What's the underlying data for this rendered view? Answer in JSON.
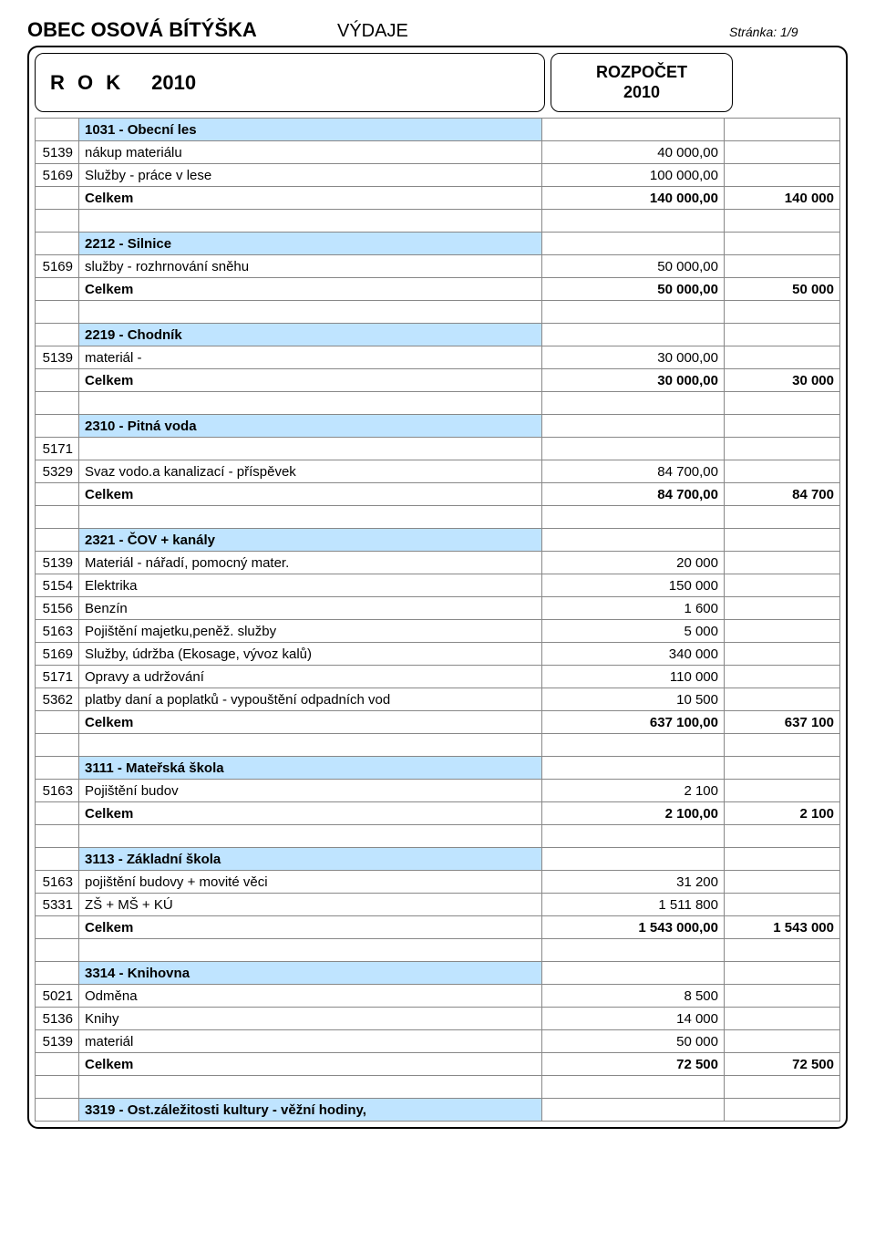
{
  "header": {
    "org": "OBEC OSOVÁ BÍTÝŠKA",
    "doc_type": "VÝDAJE",
    "page_label": "Stránka: 1/9",
    "year_label": "R O K",
    "year": "2010",
    "budget_label_1": "ROZPOČET",
    "budget_label_2": "2010"
  },
  "colors": {
    "section_bg": "#bfe4ff",
    "border": "#888888",
    "frame": "#000000"
  },
  "sections": [
    {
      "title": "1031 - Obecní les",
      "rows": [
        {
          "code": "5139",
          "label": "nákup  materiálu",
          "val": "40 000,00"
        },
        {
          "code": "5169",
          "label": "Služby - práce v lese",
          "val": "100 000,00"
        }
      ],
      "total_label": "Celkem",
      "total_val": "140 000,00",
      "total_ext": "140 000"
    },
    {
      "title": "2212 - Silnice",
      "rows": [
        {
          "code": "5169",
          "label": "služby - rozhrnování sněhu",
          "val": "50 000,00"
        }
      ],
      "total_label": "Celkem",
      "total_val": "50 000,00",
      "total_ext": "50 000"
    },
    {
      "title": "2219 - Chodník",
      "rows": [
        {
          "code": "5139",
          "label": "materiál -",
          "val": "30 000,00"
        }
      ],
      "total_label": "Celkem",
      "total_val": "30 000,00",
      "total_ext": "30 000"
    },
    {
      "title": "2310 - Pitná voda",
      "rows": [
        {
          "code": "5171",
          "label": "",
          "val": ""
        },
        {
          "code": "5329",
          "label": "Svaz vodo.a kanalizací - příspěvek",
          "val": "84 700,00"
        }
      ],
      "total_label": "Celkem",
      "total_val": "84 700,00",
      "total_ext": "84 700"
    },
    {
      "title": "2321 - ČOV + kanály",
      "rows": [
        {
          "code": "5139",
          "label": "Materiál -  nářadí, pomocný  mater.",
          "val": "20 000"
        },
        {
          "code": "5154",
          "label": "Elektrika",
          "val": "150 000"
        },
        {
          "code": "5156",
          "label": "Benzín",
          "val": "1 600"
        },
        {
          "code": "5163",
          "label": "Pojištění majetku,peněž. služby",
          "val": "5 000"
        },
        {
          "code": "5169",
          "label": "Služby, údržba (Ekosage, vývoz kalů)",
          "val": "340 000"
        },
        {
          "code": "5171",
          "label": "Opravy a udržování",
          "val": "110 000"
        },
        {
          "code": "5362",
          "label": "platby daní a poplatků - vypouštění odpadních vod",
          "val": "10 500"
        }
      ],
      "total_label": "Celkem",
      "total_val": "637 100,00",
      "total_ext": "637 100"
    },
    {
      "title": "3111 - Mateřská škola",
      "rows": [
        {
          "code": "5163",
          "label": "Pojištění budov",
          "val": "2 100"
        }
      ],
      "total_label": "Celkem",
      "total_val": "2 100,00",
      "total_ext": "2 100"
    },
    {
      "title": "3113 - Základní škola",
      "rows": [
        {
          "code": "5163",
          "label": "pojištění budovy + movité věci",
          "val": "31 200"
        },
        {
          "code": "5331",
          "label": "ZŠ + MŠ + KÚ",
          "val": "1 511 800"
        }
      ],
      "total_label": "Celkem",
      "total_val": "1 543 000,00",
      "total_ext": "1 543 000"
    },
    {
      "title": "3314 - Knihovna",
      "rows": [
        {
          "code": "5021",
          "label": "Odměna",
          "val": "8 500"
        },
        {
          "code": "5136",
          "label": "Knihy",
          "val": "14 000"
        },
        {
          "code": "5139",
          "label": "materiál",
          "val": "50 000"
        }
      ],
      "total_label": "Celkem",
      "total_val": "72 500",
      "total_ext": "72 500"
    },
    {
      "title": "3319 - Ost.záležitosti kultury - věžní hodiny,",
      "rows": [],
      "total_label": "",
      "total_val": "",
      "total_ext": ""
    }
  ]
}
